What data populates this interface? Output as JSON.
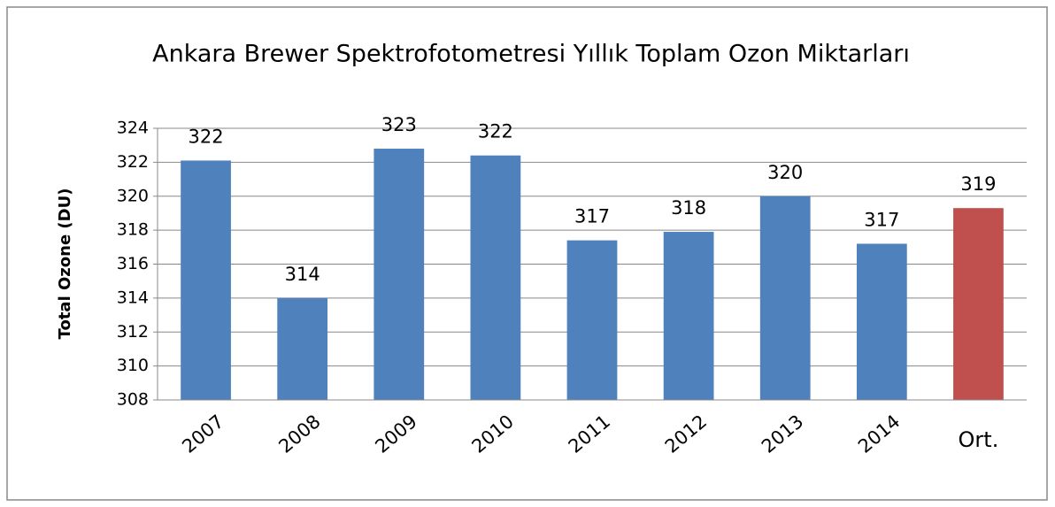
{
  "chart_data": {
    "type": "bar",
    "title": "Ankara Brewer Spektrofotometresi Yıllık Toplam Ozon Miktarları",
    "y_label": "Total Ozone (DU)",
    "categories": [
      "2007",
      "2008",
      "2009",
      "2010",
      "2011",
      "2012",
      "2013",
      "2014",
      "Ort."
    ],
    "values": [
      322.1,
      314,
      322.8,
      322.4,
      317.4,
      317.9,
      320,
      317.2,
      319.3
    ],
    "value_labels": [
      "322",
      "314",
      "323",
      "322",
      "317",
      "318",
      "320",
      "317",
      "319"
    ],
    "colors": [
      "#4f81bd",
      "#4f81bd",
      "#4f81bd",
      "#4f81bd",
      "#4f81bd",
      "#4f81bd",
      "#4f81bd",
      "#4f81bd",
      "#c0504d"
    ],
    "ylim": [
      308,
      324
    ],
    "yticks": [
      308,
      310,
      312,
      314,
      316,
      318,
      320,
      322,
      324
    ],
    "grid": true
  }
}
